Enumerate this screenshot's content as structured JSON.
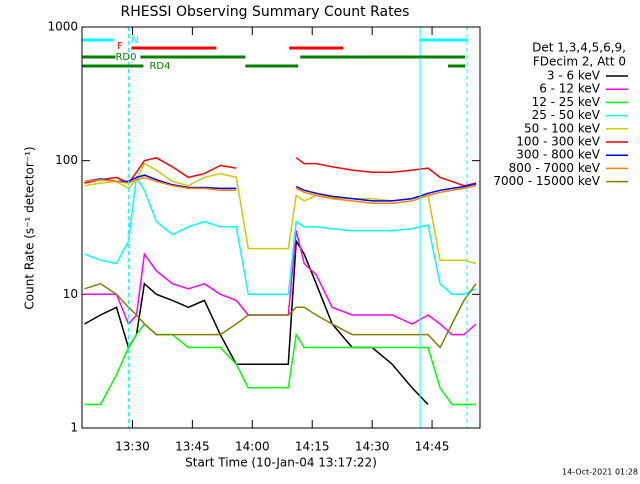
{
  "chart_data": {
    "type": "line",
    "title": "RHESSI Observing Summary Count Rates",
    "x_label": "Start Time (10-Jan-04 13:17:22)",
    "y_label": "Count Rate (s⁻¹ detector⁻¹)",
    "footer": "14-Oct-2021 01:28",
    "log_y": true,
    "xlim": [
      "13:17:22",
      "14:57"
    ],
    "xticks": [
      "13:30",
      "13:45",
      "14:00",
      "14:15",
      "14:30",
      "14:45"
    ],
    "ylim": [
      1,
      1000
    ],
    "yticks": [
      1,
      10,
      100,
      1000
    ],
    "legend_title": [
      "Det 1,3,4,5,6,9,",
      "FDecim 2, Att 0"
    ],
    "x": [
      "13:18",
      "13:22",
      "13:26",
      "13:29",
      "13:31",
      "13:33",
      "13:36",
      "13:40",
      "13:44",
      "13:48",
      "13:52",
      "13:56",
      "13:59",
      "14:01",
      "14:05",
      "14:09",
      "14:11",
      "14:13",
      "14:16",
      "14:20",
      "14:25",
      "14:30",
      "14:35",
      "14:40",
      "14:44",
      "14:47",
      "14:50",
      "14:53",
      "14:56"
    ],
    "series": [
      {
        "name": "3 - 6 keV",
        "color": "#000000",
        "values": [
          6,
          7,
          8,
          4,
          5,
          12,
          10,
          9,
          8,
          9,
          5,
          3,
          3,
          3,
          3,
          3,
          25,
          20,
          12,
          6,
          4,
          4,
          3,
          2,
          1.5,
          null,
          null,
          null,
          null
        ]
      },
      {
        "name": "6 - 12 keV",
        "color": "#ff00ff",
        "values": [
          10,
          10,
          10,
          6,
          7,
          20,
          15,
          12,
          11,
          12,
          10,
          9,
          7,
          7,
          7,
          7,
          30,
          17,
          14,
          8,
          7,
          7,
          7,
          6,
          7,
          6,
          5,
          5,
          6
        ]
      },
      {
        "name": "12 - 25 keV",
        "color": "#00ff00",
        "values": [
          1.5,
          1.5,
          2.5,
          4,
          5,
          6,
          5,
          5,
          4,
          4,
          4,
          3,
          2,
          2,
          2,
          2,
          5,
          4,
          4,
          4,
          4,
          4,
          4,
          4,
          4,
          2,
          1.5,
          1.5,
          1.5
        ]
      },
      {
        "name": "25 - 50 keV",
        "color": "#00ffff",
        "values": [
          20,
          18,
          17,
          25,
          75,
          60,
          35,
          28,
          32,
          35,
          32,
          32,
          10,
          10,
          10,
          10,
          35,
          32,
          32,
          31,
          30,
          30,
          30,
          31,
          33,
          12,
          10,
          10,
          11
        ]
      },
      {
        "name": "50 - 100 keV",
        "color": "#cccc00",
        "values": [
          65,
          68,
          70,
          62,
          72,
          95,
          85,
          70,
          65,
          75,
          80,
          75,
          22,
          22,
          22,
          22,
          55,
          50,
          55,
          53,
          52,
          52,
          50,
          52,
          55,
          18,
          18,
          18,
          17
        ]
      },
      {
        "name": "100 - 300 keV",
        "color": "#ff0000",
        "values": [
          68,
          72,
          75,
          68,
          82,
          100,
          105,
          90,
          75,
          80,
          92,
          88,
          null,
          null,
          null,
          null,
          105,
          95,
          95,
          90,
          85,
          82,
          82,
          85,
          88,
          75,
          70,
          65,
          68
        ]
      },
      {
        "name": "300 - 800 keV",
        "color": "#0000ff",
        "values": [
          70,
          73,
          70,
          70,
          75,
          78,
          72,
          66,
          63,
          63,
          62,
          62,
          null,
          null,
          null,
          null,
          64,
          60,
          57,
          54,
          52,
          50,
          50,
          52,
          57,
          60,
          62,
          64,
          67
        ]
      },
      {
        "name": "800 - 7000 keV",
        "color": "#ff8000",
        "values": [
          70,
          72,
          70,
          68,
          72,
          75,
          70,
          65,
          62,
          62,
          60,
          60,
          null,
          null,
          null,
          null,
          62,
          58,
          55,
          52,
          50,
          48,
          48,
          50,
          55,
          58,
          60,
          62,
          65
        ]
      },
      {
        "name": "7000 - 15000 keV",
        "color": "#808000",
        "values": [
          11,
          12,
          10,
          8,
          7,
          6,
          5,
          5,
          5,
          5,
          5,
          6,
          7,
          7,
          7,
          7,
          8,
          8,
          7,
          6,
          5,
          5,
          5,
          5,
          5,
          4,
          6,
          9,
          12
        ]
      }
    ],
    "flags": [
      {
        "label": "N",
        "color": "#00ffff",
        "segments": [
          [
            "13:17:30",
            "13:25:15"
          ],
          [
            "14:42",
            "14:53:45"
          ]
        ]
      },
      {
        "label": "F",
        "color": "#ff0000",
        "segments": [
          [
            "13:29:45",
            "13:51"
          ],
          [
            "14:09:15",
            "14:22:45"
          ]
        ]
      },
      {
        "label": "RD0",
        "color": "#008000",
        "segments": [
          [
            "13:17:30",
            "13:25:45"
          ],
          [
            "13:32",
            "13:58:15"
          ],
          [
            "14:12",
            "14:53:15"
          ]
        ]
      },
      {
        "label": "RD4",
        "color": "#008000",
        "segments": [
          [
            "13:17:30",
            "13:32:45"
          ],
          [
            "13:58:15",
            "14:11:30"
          ],
          [
            "14:49",
            "14:53:15"
          ]
        ]
      }
    ],
    "vlines": [
      {
        "x": "13:29",
        "color": "#00ffff",
        "dashed": true
      },
      {
        "x": "14:42",
        "color": "#00ffff",
        "dashed": false
      },
      {
        "x": "14:53:45",
        "color": "#00ffff",
        "dashed": true
      }
    ]
  }
}
